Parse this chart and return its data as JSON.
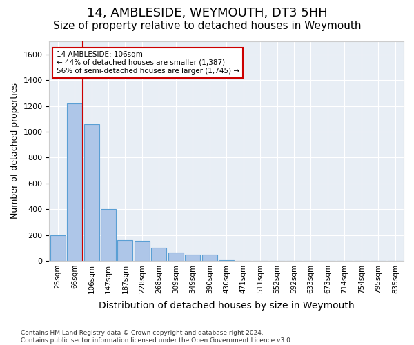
{
  "title": "14, AMBLESIDE, WEYMOUTH, DT3 5HH",
  "subtitle": "Size of property relative to detached houses in Weymouth",
  "xlabel": "Distribution of detached houses by size in Weymouth",
  "ylabel": "Number of detached properties",
  "bins": [
    "25sqm",
    "66sqm",
    "106sqm",
    "147sqm",
    "187sqm",
    "228sqm",
    "268sqm",
    "309sqm",
    "349sqm",
    "390sqm",
    "430sqm",
    "471sqm",
    "511sqm",
    "552sqm",
    "592sqm",
    "633sqm",
    "673sqm",
    "714sqm",
    "754sqm",
    "795sqm",
    "835sqm"
  ],
  "values": [
    200,
    1220,
    1060,
    400,
    160,
    155,
    100,
    65,
    50,
    50,
    5,
    0,
    0,
    0,
    0,
    0,
    0,
    0,
    0,
    0,
    0
  ],
  "bar_color": "#aec6e8",
  "bar_edge_color": "#5a9fd4",
  "property_line_x": 2,
  "property_line_color": "#cc0000",
  "annotation_text": "14 AMBLESIDE: 106sqm\n← 44% of detached houses are smaller (1,387)\n56% of semi-detached houses are larger (1,745) →",
  "annotation_box_color": "#ffffff",
  "annotation_box_edge": "#cc0000",
  "ylim": [
    0,
    1700
  ],
  "yticks": [
    0,
    200,
    400,
    600,
    800,
    1000,
    1200,
    1400,
    1600
  ],
  "bg_color": "#e8eef5",
  "footer": "Contains HM Land Registry data © Crown copyright and database right 2024.\nContains public sector information licensed under the Open Government Licence v3.0.",
  "title_fontsize": 13,
  "subtitle_fontsize": 11,
  "xlabel_fontsize": 10,
  "ylabel_fontsize": 9
}
